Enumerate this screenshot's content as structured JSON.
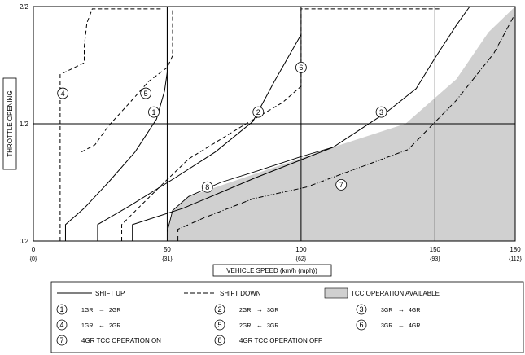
{
  "chart_data": {
    "type": "line",
    "xlabel": "VEHICLE SPEED (km/h (mph))",
    "ylabel": "THROTTLE OPENING",
    "xlim": [
      0,
      180
    ],
    "ylim": [
      0,
      1
    ],
    "x_ticks": [
      {
        "value": 0,
        "label": "0",
        "sub": "{0}"
      },
      {
        "value": 50,
        "label": "50",
        "sub": "{31}"
      },
      {
        "value": 100,
        "label": "100",
        "sub": "{62}"
      },
      {
        "value": 150,
        "label": "150",
        "sub": "{93}"
      },
      {
        "value": 180,
        "label": "180",
        "sub": "{112}"
      }
    ],
    "y_ticks": [
      {
        "value": 0,
        "label": "0/2"
      },
      {
        "value": 0.5,
        "label": "1/2"
      },
      {
        "value": 1,
        "label": "2/2"
      }
    ],
    "grid": {
      "vertical": [
        50,
        100,
        150
      ],
      "horizontal": [
        0.5
      ]
    },
    "tcc_region": {
      "name": "TCC OPERATION AVAILABLE",
      "upper": [
        [
          50,
          0.04
        ],
        [
          52,
          0.13
        ],
        [
          58,
          0.19
        ],
        [
          112,
          0.4
        ],
        [
          139,
          0.5
        ],
        [
          158,
          0.69
        ],
        [
          170,
          0.89
        ],
        [
          180,
          1.0
        ]
      ],
      "color": "#d0d0d0"
    },
    "series": [
      {
        "id": "1",
        "style": "solid",
        "points": [
          [
            12,
            0
          ],
          [
            12,
            0.07
          ],
          [
            19,
            0.14
          ],
          [
            28,
            0.25
          ],
          [
            38,
            0.38
          ],
          [
            46,
            0.52
          ],
          [
            49,
            0.64
          ],
          [
            50,
            0.72
          ],
          [
            50,
            1.0
          ]
        ]
      },
      {
        "id": "2",
        "style": "solid",
        "points": [
          [
            24,
            0
          ],
          [
            24,
            0.07
          ],
          [
            36,
            0.15
          ],
          [
            53,
            0.27
          ],
          [
            68,
            0.38
          ],
          [
            82,
            0.51
          ],
          [
            90,
            0.68
          ],
          [
            100,
            0.88
          ]
        ]
      },
      {
        "id": "3",
        "style": "solid",
        "points": [
          [
            37,
            0
          ],
          [
            37,
            0.07
          ],
          [
            56,
            0.14
          ],
          [
            83,
            0.27
          ],
          [
            112,
            0.4
          ],
          [
            132,
            0.55
          ],
          [
            143,
            0.65
          ],
          [
            150,
            0.78
          ],
          [
            158,
            0.92
          ],
          [
            163,
            1.0
          ],
          [
            162,
            1.0
          ]
        ]
      },
      {
        "id": "4",
        "style": "dashed",
        "points": [
          [
            10,
            0
          ],
          [
            10,
            0.38
          ],
          [
            10,
            0.71
          ],
          [
            19,
            0.76
          ],
          [
            19,
            0.83
          ],
          [
            20,
            0.93
          ],
          [
            22,
            0.99
          ],
          [
            48,
            0.99
          ]
        ]
      },
      {
        "id": "5",
        "style": "dashed",
        "points": [
          [
            18,
            0.38
          ],
          [
            23,
            0.41
          ],
          [
            28,
            0.49
          ],
          [
            36,
            0.59
          ],
          [
            43,
            0.68
          ],
          [
            50,
            0.74
          ],
          [
            52,
            0.79
          ],
          [
            52,
            0.99
          ]
        ]
      },
      {
        "id": "6",
        "style": "dashed",
        "points": [
          [
            33,
            0
          ],
          [
            33,
            0.07
          ],
          [
            40,
            0.15
          ],
          [
            48,
            0.24
          ],
          [
            58,
            0.35
          ],
          [
            78,
            0.49
          ],
          [
            93,
            0.59
          ],
          [
            100,
            0.66
          ],
          [
            100,
            0.99
          ],
          [
            152,
            0.99
          ]
        ]
      },
      {
        "id": "7",
        "style": "dashdot",
        "points": [
          [
            54,
            0
          ],
          [
            54,
            0.05
          ],
          [
            64,
            0.1
          ],
          [
            82,
            0.18
          ],
          [
            102,
            0.23
          ],
          [
            140,
            0.39
          ],
          [
            158,
            0.6
          ],
          [
            172,
            0.8
          ],
          [
            180,
            0.97
          ]
        ]
      },
      {
        "id": "8",
        "style": "solid-thin",
        "points": [
          [
            50,
            0.04
          ],
          [
            52,
            0.13
          ],
          [
            58,
            0.19
          ],
          [
            70,
            0.25
          ],
          [
            84,
            0.3
          ],
          [
            100,
            0.36
          ],
          [
            112,
            0.4
          ]
        ]
      }
    ],
    "markers": [
      {
        "id": "1",
        "x": 45,
        "y": 0.55
      },
      {
        "id": "2",
        "x": 84,
        "y": 0.55
      },
      {
        "id": "3",
        "x": 130,
        "y": 0.55
      },
      {
        "id": "4",
        "x": 11,
        "y": 0.63
      },
      {
        "id": "5",
        "x": 42,
        "y": 0.63
      },
      {
        "id": "6",
        "x": 100,
        "y": 0.74
      },
      {
        "id": "7",
        "x": 115,
        "y": 0.24
      },
      {
        "id": "8",
        "x": 65,
        "y": 0.23
      }
    ]
  },
  "legend": {
    "shift_up": "SHIFT UP",
    "shift_down": "SHIFT DOWN",
    "tcc_available": "TCC OPERATION AVAILABLE",
    "items": [
      {
        "num": "1",
        "text": "1GR",
        "arrow": "→",
        "text2": "2GR"
      },
      {
        "num": "2",
        "text": "2GR",
        "arrow": "→",
        "text2": "3GR"
      },
      {
        "num": "3",
        "text": "3GR",
        "arrow": "→",
        "text2": "4GR"
      },
      {
        "num": "4",
        "text": "1GR",
        "arrow": "←",
        "text2": "2GR"
      },
      {
        "num": "5",
        "text": "2GR",
        "arrow": "←",
        "text2": "3GR"
      },
      {
        "num": "6",
        "text": "3GR",
        "arrow": "←",
        "text2": "4GR"
      },
      {
        "num": "7",
        "text": "4GR TCC OPERATION ON",
        "arrow": "",
        "text2": ""
      },
      {
        "num": "8",
        "text": "4GR TCC OPERATION OFF",
        "arrow": "",
        "text2": ""
      }
    ]
  }
}
